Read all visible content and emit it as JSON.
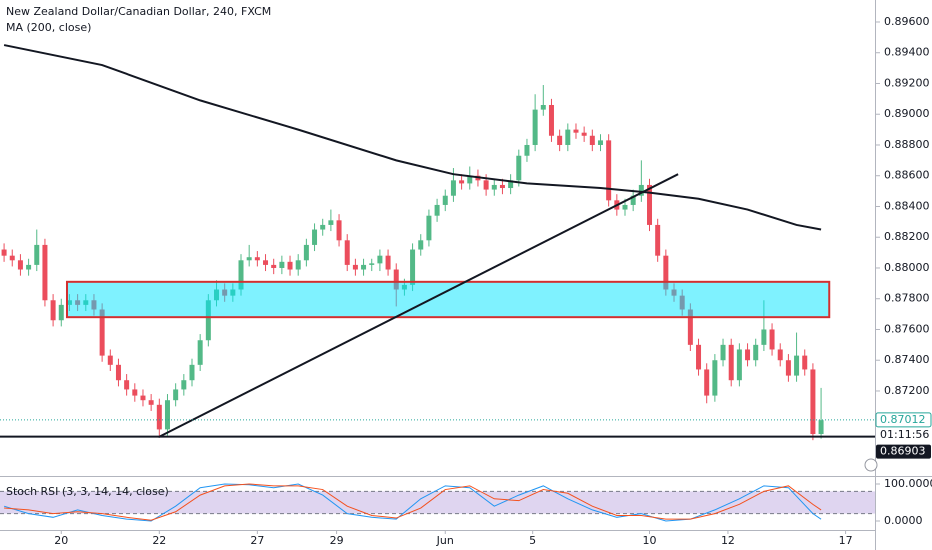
{
  "chart_data": [
    {
      "type": "candlestick",
      "title": "New Zealand Dollar/Canadian Dollar, 240, FXCM",
      "up_color": "#53b987",
      "down_color": "#eb4d5c",
      "xlim": [
        -0.5,
        106.6
      ],
      "xticks": [
        {
          "value": 7,
          "label": "20"
        },
        {
          "value": 19,
          "label": "22"
        },
        {
          "value": 31,
          "label": "27"
        },
        {
          "value": 40.7,
          "label": "29"
        },
        {
          "value": 54,
          "label": "Jun"
        },
        {
          "value": 64.7,
          "label": "5"
        },
        {
          "value": 79,
          "label": "10"
        },
        {
          "value": 88.6,
          "label": "12"
        },
        {
          "value": 103,
          "label": "17"
        }
      ],
      "ylim": [
        0.86686,
        0.89743
      ],
      "yticks": [
        {
          "value": 0.896,
          "label": "0.89600"
        },
        {
          "value": 0.894,
          "label": "0.89400"
        },
        {
          "value": 0.892,
          "label": "0.89200"
        },
        {
          "value": 0.89,
          "label": "0.89000"
        },
        {
          "value": 0.888,
          "label": "0.88800"
        },
        {
          "value": 0.886,
          "label": "0.88600"
        },
        {
          "value": 0.884,
          "label": "0.88400"
        },
        {
          "value": 0.882,
          "label": "0.88200"
        },
        {
          "value": 0.88,
          "label": "0.88000"
        },
        {
          "value": 0.878,
          "label": "0.87800"
        },
        {
          "value": 0.876,
          "label": "0.87600"
        },
        {
          "value": 0.874,
          "label": "0.87400"
        },
        {
          "value": 0.872,
          "label": "0.87200"
        }
      ],
      "ohlc": [
        [
          0.8812,
          0.8816,
          0.8804,
          0.8808
        ],
        [
          0.8808,
          0.8812,
          0.8801,
          0.8805
        ],
        [
          0.8805,
          0.8809,
          0.8795,
          0.8799
        ],
        [
          0.8799,
          0.8806,
          0.8795,
          0.8802
        ],
        [
          0.8802,
          0.8825,
          0.8798,
          0.8815
        ],
        [
          0.8815,
          0.8819,
          0.8775,
          0.8779
        ],
        [
          0.8779,
          0.8783,
          0.8762,
          0.8766
        ],
        [
          0.8766,
          0.878,
          0.8762,
          0.8776
        ],
        [
          0.8776,
          0.8783,
          0.8772,
          0.8779
        ],
        [
          0.8779,
          0.8783,
          0.8772,
          0.8776
        ],
        [
          0.8776,
          0.8783,
          0.8772,
          0.8779
        ],
        [
          0.8779,
          0.8783,
          0.8769,
          0.8773
        ],
        [
          0.8773,
          0.8777,
          0.8739,
          0.8743
        ],
        [
          0.8743,
          0.8747,
          0.8733,
          0.8737
        ],
        [
          0.8737,
          0.8741,
          0.8723,
          0.8727
        ],
        [
          0.8727,
          0.8731,
          0.8717,
          0.8721
        ],
        [
          0.8721,
          0.8725,
          0.8713,
          0.8717
        ],
        [
          0.8717,
          0.8721,
          0.871,
          0.8714
        ],
        [
          0.8714,
          0.8718,
          0.8707,
          0.8711
        ],
        [
          0.8711,
          0.8715,
          0.8691,
          0.8695
        ],
        [
          0.8695,
          0.8718,
          0.8691,
          0.8714
        ],
        [
          0.8714,
          0.8725,
          0.871,
          0.8721
        ],
        [
          0.8721,
          0.8731,
          0.8717,
          0.8727
        ],
        [
          0.8727,
          0.8741,
          0.8723,
          0.8737
        ],
        [
          0.8737,
          0.8757,
          0.8733,
          0.8753
        ],
        [
          0.8753,
          0.8783,
          0.8749,
          0.8779
        ],
        [
          0.8779,
          0.8792,
          0.8775,
          0.8786
        ],
        [
          0.8786,
          0.879,
          0.8778,
          0.8782
        ],
        [
          0.8782,
          0.879,
          0.8778,
          0.8786
        ],
        [
          0.8786,
          0.8809,
          0.8782,
          0.8805
        ],
        [
          0.8805,
          0.8815,
          0.8801,
          0.8807
        ],
        [
          0.8807,
          0.8811,
          0.8801,
          0.8805
        ],
        [
          0.8805,
          0.8809,
          0.8798,
          0.8802
        ],
        [
          0.8802,
          0.8806,
          0.8796,
          0.88
        ],
        [
          0.88,
          0.8808,
          0.8796,
          0.8804
        ],
        [
          0.8804,
          0.8808,
          0.8795,
          0.8799
        ],
        [
          0.8799,
          0.8809,
          0.8795,
          0.8805
        ],
        [
          0.8805,
          0.8819,
          0.8801,
          0.8815
        ],
        [
          0.8815,
          0.8829,
          0.8811,
          0.8825
        ],
        [
          0.8825,
          0.8832,
          0.8821,
          0.8828
        ],
        [
          0.8828,
          0.8838,
          0.8824,
          0.8831
        ],
        [
          0.8831,
          0.8835,
          0.8814,
          0.8818
        ],
        [
          0.8818,
          0.8822,
          0.8798,
          0.8802
        ],
        [
          0.8802,
          0.8806,
          0.8795,
          0.8799
        ],
        [
          0.8799,
          0.8806,
          0.8795,
          0.8802
        ],
        [
          0.8802,
          0.8806,
          0.8798,
          0.8803
        ],
        [
          0.8803,
          0.8812,
          0.8798,
          0.8808
        ],
        [
          0.8808,
          0.8812,
          0.8795,
          0.8799
        ],
        [
          0.8799,
          0.8803,
          0.8775,
          0.8786
        ],
        [
          0.8786,
          0.8793,
          0.8782,
          0.8789
        ],
        [
          0.8789,
          0.8816,
          0.8785,
          0.8812
        ],
        [
          0.8812,
          0.8822,
          0.8808,
          0.8818
        ],
        [
          0.8818,
          0.8838,
          0.8814,
          0.8834
        ],
        [
          0.8834,
          0.8845,
          0.883,
          0.8841
        ],
        [
          0.8841,
          0.8851,
          0.8837,
          0.8847
        ],
        [
          0.8847,
          0.8865,
          0.8843,
          0.8857
        ],
        [
          0.8857,
          0.8861,
          0.8851,
          0.8855
        ],
        [
          0.8855,
          0.8866,
          0.8851,
          0.886
        ],
        [
          0.886,
          0.8864,
          0.8853,
          0.8857
        ],
        [
          0.8857,
          0.8861,
          0.8847,
          0.8851
        ],
        [
          0.8851,
          0.8858,
          0.8847,
          0.8854
        ],
        [
          0.8854,
          0.8858,
          0.8848,
          0.8852
        ],
        [
          0.8852,
          0.8861,
          0.8848,
          0.8857
        ],
        [
          0.8857,
          0.8877,
          0.8853,
          0.8873
        ],
        [
          0.8873,
          0.8884,
          0.8869,
          0.888
        ],
        [
          0.888,
          0.8913,
          0.8876,
          0.8903
        ],
        [
          0.8903,
          0.8919,
          0.8899,
          0.8906
        ],
        [
          0.8906,
          0.891,
          0.8882,
          0.8886
        ],
        [
          0.8886,
          0.889,
          0.8876,
          0.888
        ],
        [
          0.888,
          0.8894,
          0.8876,
          0.889
        ],
        [
          0.889,
          0.8894,
          0.8884,
          0.8888
        ],
        [
          0.8888,
          0.8892,
          0.8882,
          0.8886
        ],
        [
          0.8886,
          0.889,
          0.8876,
          0.888
        ],
        [
          0.888,
          0.8887,
          0.8876,
          0.8883
        ],
        [
          0.8883,
          0.8887,
          0.884,
          0.8844
        ],
        [
          0.8844,
          0.8848,
          0.8834,
          0.8838
        ],
        [
          0.8838,
          0.8845,
          0.8834,
          0.8841
        ],
        [
          0.8841,
          0.8851,
          0.8837,
          0.8847
        ],
        [
          0.8847,
          0.887,
          0.8843,
          0.8854
        ],
        [
          0.8854,
          0.8858,
          0.8824,
          0.8828
        ],
        [
          0.8828,
          0.8832,
          0.8804,
          0.8808
        ],
        [
          0.8808,
          0.8812,
          0.8782,
          0.8786
        ],
        [
          0.8786,
          0.879,
          0.8778,
          0.8782
        ],
        [
          0.8782,
          0.8786,
          0.8769,
          0.8773
        ],
        [
          0.8773,
          0.8777,
          0.8746,
          0.875
        ],
        [
          0.875,
          0.8754,
          0.873,
          0.8734
        ],
        [
          0.8734,
          0.8738,
          0.8712,
          0.8717
        ],
        [
          0.8717,
          0.8744,
          0.8713,
          0.874
        ],
        [
          0.874,
          0.8754,
          0.8736,
          0.875
        ],
        [
          0.875,
          0.8754,
          0.8723,
          0.8727
        ],
        [
          0.8727,
          0.8751,
          0.8723,
          0.8747
        ],
        [
          0.8747,
          0.8751,
          0.8736,
          0.874
        ],
        [
          0.874,
          0.8754,
          0.8736,
          0.875
        ],
        [
          0.875,
          0.8779,
          0.8746,
          0.876
        ],
        [
          0.876,
          0.8764,
          0.8743,
          0.8747
        ],
        [
          0.8747,
          0.8751,
          0.8736,
          0.874
        ],
        [
          0.874,
          0.8744,
          0.8726,
          0.873
        ],
        [
          0.873,
          0.8758,
          0.8726,
          0.8743
        ],
        [
          0.8743,
          0.8747,
          0.873,
          0.8734
        ],
        [
          0.8734,
          0.8738,
          0.8688,
          0.8692
        ],
        [
          0.8692,
          0.8722,
          0.8689,
          0.8701
        ]
      ],
      "ma": {
        "name": "MA (200, close)",
        "color": "#131722",
        "x": [
          0,
          12,
          24,
          36,
          48,
          55,
          64,
          73,
          79,
          85,
          91,
          97,
          100
        ],
        "values": [
          0.8945,
          0.8932,
          0.8909,
          0.889,
          0.887,
          0.8861,
          0.8855,
          0.8852,
          0.8849,
          0.8845,
          0.8838,
          0.8828,
          0.8825
        ]
      },
      "zone": {
        "x": [
          7.7,
          101
        ],
        "y": [
          0.8768,
          0.8791
        ]
      },
      "trendline": {
        "x": [
          18.9,
          82.5
        ],
        "y": [
          0.869,
          0.8861
        ]
      },
      "last_price": 0.87012,
      "countdown": "01:11:56",
      "hline": 0.86903
    },
    {
      "type": "line",
      "title": "Stoch RSI (3, 3, 14, 14, close)",
      "ylim": [
        -24.3,
        116.2
      ],
      "yticks": [
        {
          "value": 100,
          "label": "100.0000"
        },
        {
          "value": 0,
          "label": "0.0000"
        }
      ],
      "bands": [
        80,
        20
      ],
      "x": [
        0,
        3,
        6,
        9,
        12,
        15,
        18,
        21,
        24,
        27,
        30,
        33,
        36,
        39,
        42,
        45,
        48,
        51,
        54,
        57,
        60,
        63,
        66,
        69,
        72,
        75,
        78,
        81,
        84,
        87,
        90,
        93,
        96,
        99,
        100
      ],
      "series": [
        {
          "color": "#2196f3",
          "values": [
            40,
            20,
            10,
            30,
            15,
            5,
            0,
            40,
            90,
            100,
            98,
            90,
            100,
            70,
            20,
            10,
            5,
            60,
            95,
            90,
            40,
            70,
            95,
            60,
            30,
            10,
            20,
            0,
            5,
            30,
            60,
            95,
            90,
            20,
            5
          ]
        },
        {
          "color": "#f4511e",
          "values": [
            35,
            30,
            20,
            25,
            20,
            10,
            2,
            25,
            70,
            95,
            100,
            95,
            95,
            85,
            40,
            15,
            8,
            35,
            85,
            95,
            60,
            55,
            85,
            75,
            40,
            15,
            15,
            5,
            5,
            20,
            45,
            80,
            95,
            45,
            30
          ]
        }
      ]
    }
  ]
}
